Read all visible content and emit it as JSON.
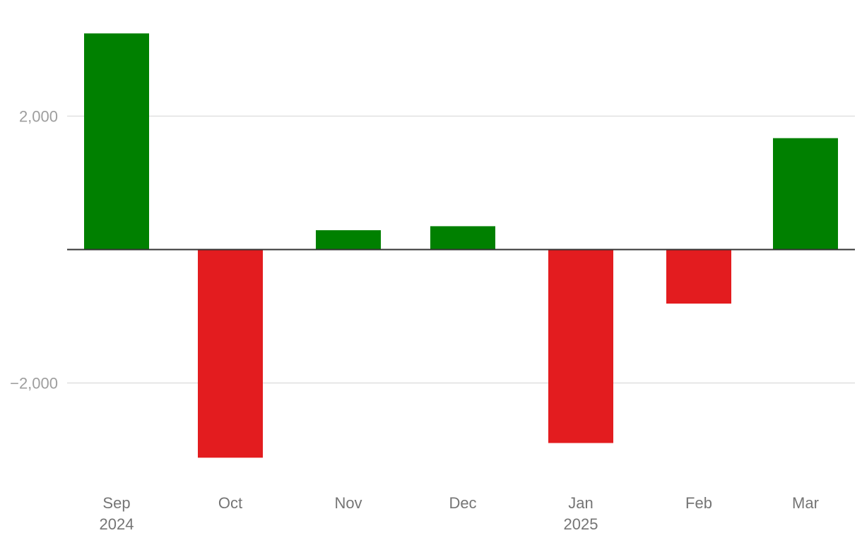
{
  "chart_data": {
    "type": "bar",
    "categories": [
      "Sep",
      "Oct",
      "Nov",
      "Dec",
      "Jan",
      "Feb",
      "Mar"
    ],
    "category_year_labels": [
      "2024",
      "",
      "",
      "",
      "2025",
      "",
      ""
    ],
    "values": [
      3240,
      -3120,
      290,
      350,
      -2900,
      -810,
      1670
    ],
    "yticks": [
      {
        "value": 2000,
        "label": "2,000"
      },
      {
        "value": -2000,
        "label": "−2,000"
      }
    ],
    "ylim": [
      -3500,
      3550
    ],
    "grid": true,
    "colors": {
      "positive": "#008000",
      "negative": "#e31c1f"
    }
  }
}
